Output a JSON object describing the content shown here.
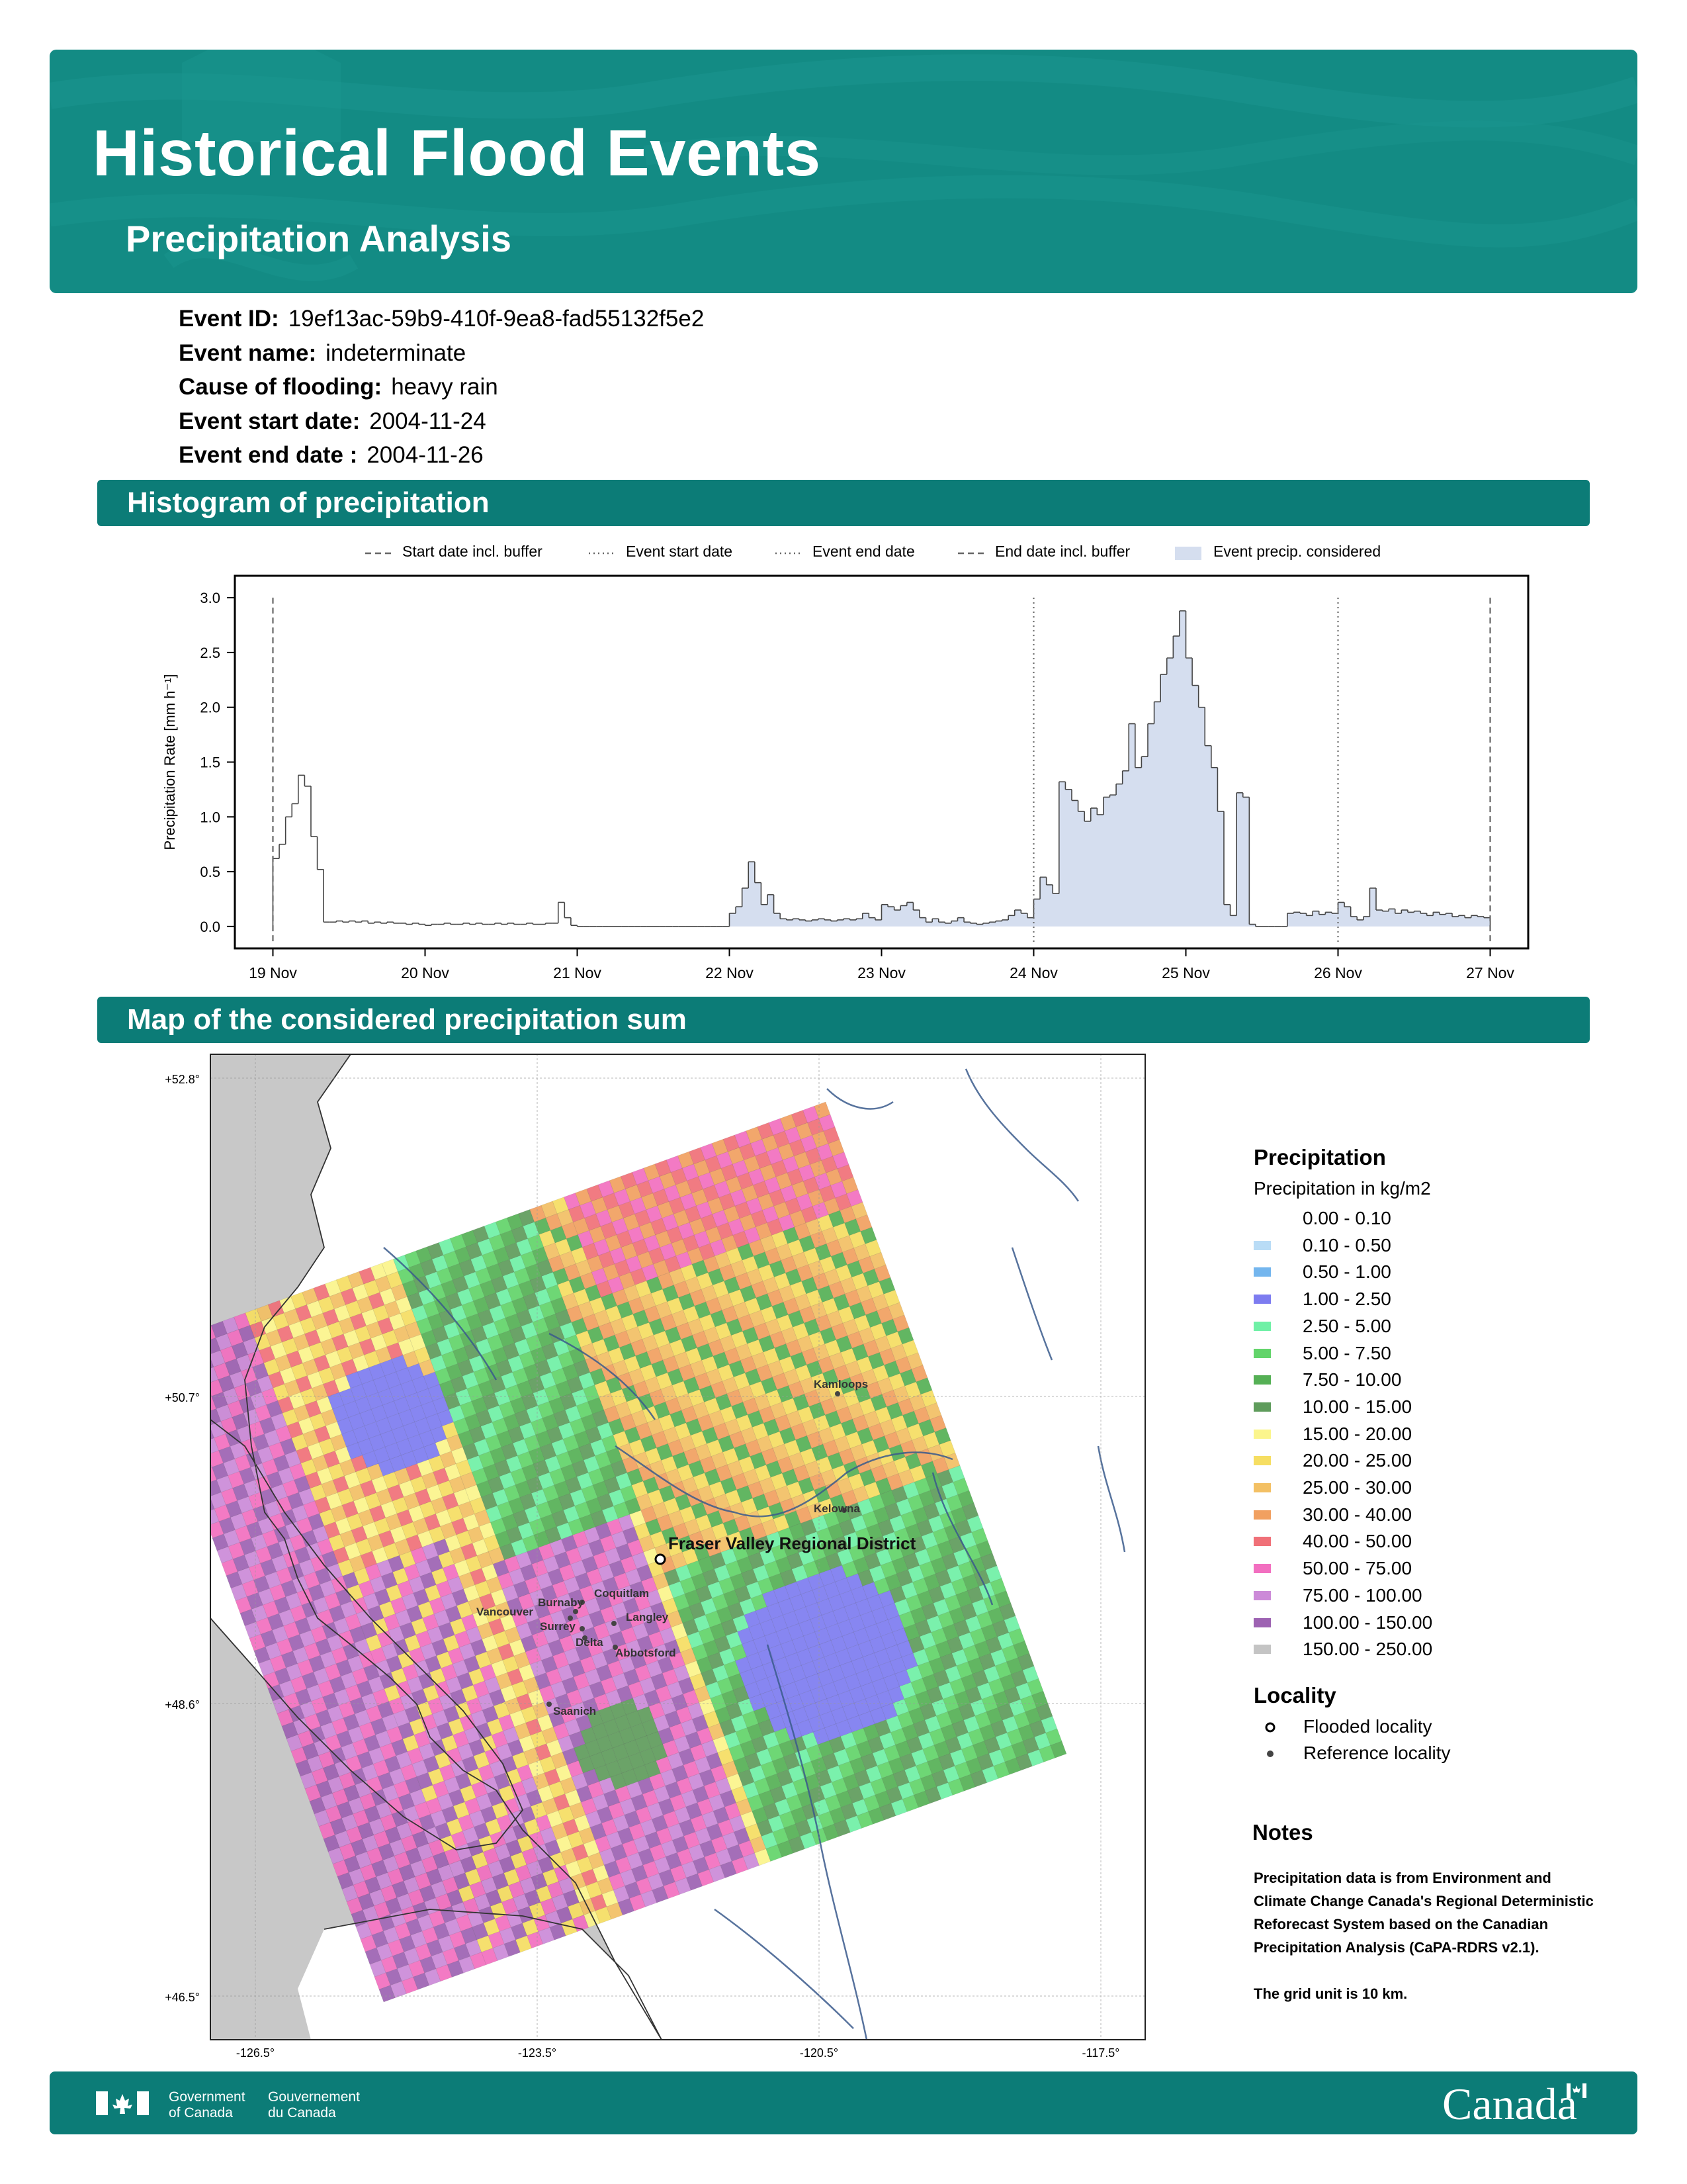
{
  "header": {
    "title": "Historical Flood Events",
    "subtitle": "Precipitation Analysis",
    "color": "#138b84"
  },
  "event": {
    "rows": [
      {
        "label": "Event ID:",
        "value": "19ef13ac-59b9-410f-9ea8-fad55132f5e2"
      },
      {
        "label": "Event name:",
        "value": "indeterminate"
      },
      {
        "label": "Cause of flooding:",
        "value": "heavy rain"
      },
      {
        "label": "Event start date:",
        "value": "2004-11-24"
      },
      {
        "label": "Event end date :",
        "value": "2004-11-26"
      }
    ]
  },
  "sections": {
    "histogram": "Histogram of precipitation",
    "map": "Map of the considered precipitation sum"
  },
  "chart_data": [
    {
      "type": "bar",
      "title": "",
      "xlabel": "",
      "ylabel": "Precipitation Rate [mm h⁻¹]",
      "ylim": [
        -0.2,
        3.2
      ],
      "yticks": [
        "0.0",
        "0.5",
        "1.0",
        "1.5",
        "2.0",
        "2.5",
        "3.0"
      ],
      "xticks": [
        "19 Nov",
        "20 Nov",
        "21 Nov",
        "22 Nov",
        "23 Nov",
        "24 Nov",
        "25 Nov",
        "26 Nov",
        "27 Nov"
      ],
      "xrange_days": [
        "2004-11-18T18:00",
        "2004-11-27T06:00"
      ],
      "grid": false,
      "legend_position": "top",
      "legend": [
        {
          "label": "Start date incl. buffer",
          "style": "dashed"
        },
        {
          "label": "Event start date",
          "style": "dotted"
        },
        {
          "label": "Event end date",
          "style": "dotted"
        },
        {
          "label": "End date incl. buffer",
          "style": "dashed"
        },
        {
          "label": "Event precip. considered",
          "style": "fill"
        }
      ],
      "vlines": [
        {
          "x": "2004-11-19T00:00",
          "style": "dashed"
        },
        {
          "x": "2004-11-24T00:00",
          "style": "dotted"
        },
        {
          "x": "2004-11-26T00:00",
          "style": "dotted"
        },
        {
          "x": "2004-11-27T00:00",
          "style": "dashed"
        }
      ],
      "shaded_range": [
        "2004-11-22T00:00",
        "2004-11-27T00:00"
      ],
      "fill_color": "#d5deef",
      "series": [
        {
          "start": "2004-11-19T00:00",
          "step_hours": 1,
          "values": [
            0.62,
            0.75,
            1.0,
            1.12,
            1.38,
            1.28,
            0.82,
            0.52,
            0.04,
            0.04,
            0.05,
            0.04,
            0.05,
            0.04,
            0.05,
            0.03,
            0.04,
            0.03,
            0.04,
            0.03,
            0.03,
            0.02,
            0.03,
            0.02,
            0.01,
            0.02,
            0.02,
            0.03,
            0.02,
            0.02,
            0.03,
            0.02,
            0.03,
            0.02,
            0.02,
            0.03,
            0.02,
            0.03,
            0.02,
            0.02,
            0.03,
            0.02,
            0.02,
            0.03,
            0.03,
            0.22,
            0.08,
            0.01,
            0.0,
            0.0,
            0.0,
            0.0,
            0.0,
            0.0,
            0.0,
            0.0,
            0.0,
            0.0,
            0.0,
            0.0,
            0.0,
            0.0,
            0.0,
            0.0,
            0.0,
            0.0,
            0.0,
            0.0,
            0.0,
            0.0,
            0.0,
            0.0,
            0.12,
            0.18,
            0.35,
            0.59,
            0.4,
            0.2,
            0.29,
            0.12,
            0.07,
            0.06,
            0.07,
            0.06,
            0.05,
            0.06,
            0.07,
            0.06,
            0.05,
            0.06,
            0.07,
            0.06,
            0.07,
            0.12,
            0.08,
            0.06,
            0.2,
            0.18,
            0.15,
            0.19,
            0.22,
            0.15,
            0.08,
            0.04,
            0.07,
            0.04,
            0.03,
            0.05,
            0.08,
            0.04,
            0.03,
            0.02,
            0.03,
            0.04,
            0.05,
            0.06,
            0.1,
            0.15,
            0.12,
            0.08,
            0.25,
            0.45,
            0.38,
            0.3,
            1.32,
            1.25,
            1.15,
            1.05,
            0.96,
            1.08,
            1.02,
            1.18,
            1.2,
            1.3,
            1.42,
            1.85,
            1.45,
            1.55,
            1.85,
            2.05,
            2.3,
            2.45,
            2.65,
            2.88,
            2.45,
            2.2,
            2.0,
            1.65,
            1.45,
            1.05,
            0.2,
            0.1,
            1.22,
            1.18,
            0.02,
            0.0,
            0.0,
            0.0,
            0.0,
            0.0,
            0.12,
            0.13,
            0.12,
            0.1,
            0.14,
            0.11,
            0.13,
            0.12,
            0.22,
            0.18,
            0.09,
            0.06,
            0.09,
            0.35,
            0.15,
            0.14,
            0.16,
            0.12,
            0.15,
            0.13,
            0.14,
            0.12,
            0.1,
            0.13,
            0.11,
            0.12,
            0.09,
            0.1,
            0.08,
            0.1,
            0.09,
            0.08
          ]
        }
      ]
    },
    {
      "type": "heatmap",
      "title": "",
      "lat_ticks": [
        "+52.8°",
        "+50.7°",
        "+48.6°",
        "+46.5°"
      ],
      "lon_ticks": [
        "-126.5°",
        "-123.5°",
        "-120.5°",
        "-117.5°"
      ],
      "grid": true,
      "flooded_localities": [
        {
          "name": "Fraser Valley Regional District"
        }
      ],
      "reference_localities": [
        {
          "name": "Kamloops"
        },
        {
          "name": "Kelowna"
        },
        {
          "name": "Coquitlam"
        },
        {
          "name": "Burnaby"
        },
        {
          "name": "Vancouver"
        },
        {
          "name": "Surrey"
        },
        {
          "name": "Langley"
        },
        {
          "name": "Delta"
        },
        {
          "name": "Abbotsford"
        },
        {
          "name": "Saanich"
        }
      ],
      "ocean_color": "#c8c8c8",
      "land_color": "#ffffff"
    }
  ],
  "map_legend": {
    "title": "Precipitation",
    "subtitle": "Precipitation in kg/m2",
    "classes": [
      {
        "label": "0.00 - 0.10",
        "color": "#ffffff"
      },
      {
        "label": "0.10 - 0.50",
        "color": "#b9dcf6"
      },
      {
        "label": "0.50 - 1.00",
        "color": "#74b6ee"
      },
      {
        "label": "1.00 - 2.50",
        "color": "#7d7cf0"
      },
      {
        "label": "2.50 - 5.00",
        "color": "#6ff0a6"
      },
      {
        "label": "5.00 - 7.50",
        "color": "#62d46a"
      },
      {
        "label": "7.50 - 10.00",
        "color": "#55b055"
      },
      {
        "label": "10.00 - 15.00",
        "color": "#5f9c5c"
      },
      {
        "label": "15.00 - 20.00",
        "color": "#fbf58c"
      },
      {
        "label": "20.00 - 25.00",
        "color": "#f6de62"
      },
      {
        "label": "25.00 - 30.00",
        "color": "#f3c064"
      },
      {
        "label": "30.00 - 40.00",
        "color": "#f1a060"
      },
      {
        "label": "40.00 - 50.00",
        "color": "#f07078"
      },
      {
        "label": "50.00 - 75.00",
        "color": "#f26fc0"
      },
      {
        "label": "75.00 - 100.00",
        "color": "#cc8ad8"
      },
      {
        "label": "100.00 - 150.00",
        "color": "#9d62b2"
      },
      {
        "label": "150.00 - 250.00",
        "color": "#c4c4c4"
      }
    ],
    "locality_title": "Locality",
    "flooded_label": "Flooded locality",
    "reference_label": "Reference locality"
  },
  "notes": {
    "title": "Notes",
    "paragraph1": "Precipitation data is from Environment and Climate Change Canada's Regional Deterministic Reforecast System based on the Canadian Precipitation Analysis (CaPA-RDRS v2.1).",
    "paragraph2": "The grid unit is 10 km."
  },
  "footer": {
    "gov_en_1": "Government",
    "gov_en_2": "of Canada",
    "gov_fr_1": "Gouvernement",
    "gov_fr_2": "du Canada",
    "wordmark": "Canada"
  }
}
